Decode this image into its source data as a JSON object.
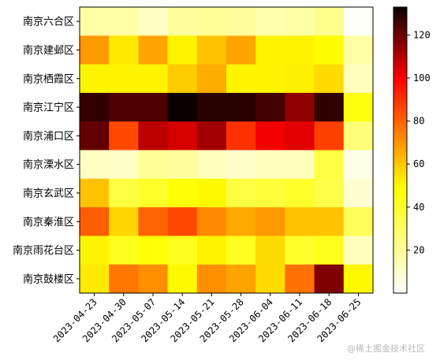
{
  "chart_data": {
    "type": "heatmap",
    "colormap": "hot_r",
    "rows": [
      "南京六合区",
      "南京建邺区",
      "南京栖霞区",
      "南京江宁区",
      "南京浦口区",
      "南京溧水区",
      "南京玄武区",
      "南京秦淮区",
      "南京雨花台区",
      "南京鼓楼区"
    ],
    "columns": [
      "2023-04-23",
      "2023-04-30",
      "2023-05-07",
      "2023-05-14",
      "2023-05-21",
      "2023-05-28",
      "2023-06-04",
      "2023-06-11",
      "2023-06-18",
      "2023-06-25"
    ],
    "values": [
      [
        12,
        12,
        8,
        13,
        14,
        13,
        11,
        12,
        15,
        1
      ],
      [
        54,
        38,
        52,
        36,
        46,
        52,
        36,
        36,
        34,
        12
      ],
      [
        36,
        36,
        36,
        44,
        50,
        36,
        36,
        37,
        41,
        9
      ],
      [
        125,
        120,
        120,
        133,
        127,
        127,
        122,
        107,
        125,
        32
      ],
      [
        115,
        70,
        98,
        93,
        103,
        75,
        87,
        90,
        72,
        18
      ],
      [
        8,
        7,
        14,
        13,
        9,
        7,
        9,
        9,
        25,
        3
      ],
      [
        46,
        25,
        28,
        33,
        35,
        25,
        26,
        28,
        24,
        6
      ],
      [
        66,
        42,
        65,
        70,
        57,
        51,
        54,
        46,
        46,
        22
      ],
      [
        36,
        30,
        33,
        30,
        36,
        30,
        41,
        28,
        30,
        9
      ],
      [
        38,
        61,
        56,
        35,
        56,
        52,
        41,
        62,
        110,
        35
      ]
    ],
    "colorbar": {
      "vmin": 0,
      "vmax": 133,
      "ticks": [
        20,
        40,
        60,
        80,
        100,
        120
      ]
    },
    "title": "",
    "xlabel": "",
    "ylabel": ""
  },
  "watermark": "@稀土掘金技术社区"
}
